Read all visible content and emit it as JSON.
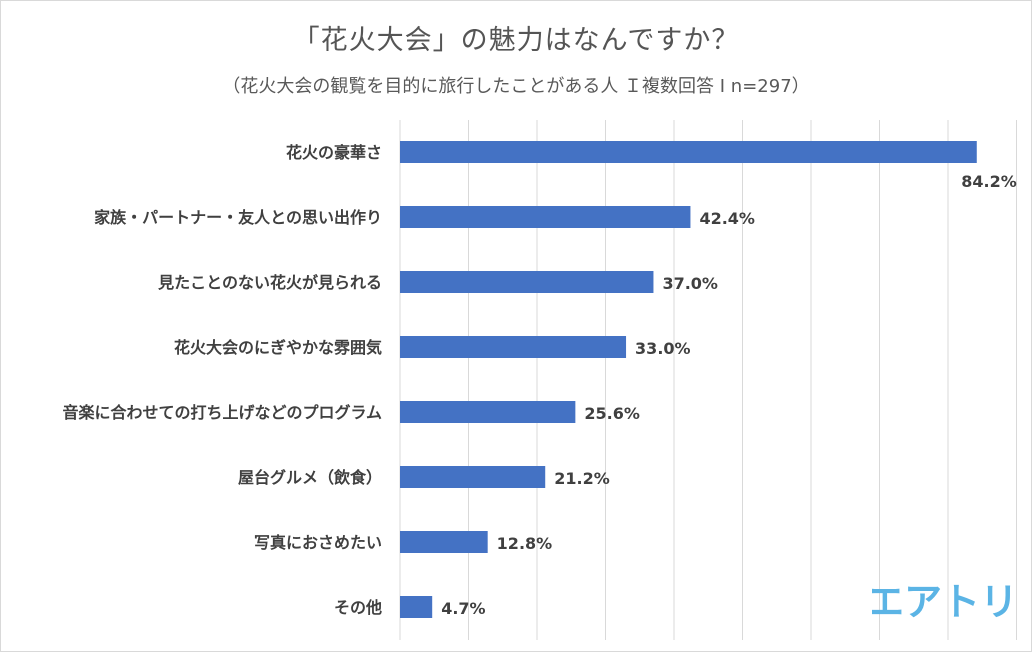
{
  "header": {
    "title": "「花火大会」の魅力はなんですか？",
    "subtitle": "（花火大会の観覧を目的に旅行したことがある人 Ｉ複数回答 I n=297）"
  },
  "logo": {
    "text": "エアトリ",
    "color": "#5bb4e5"
  },
  "colors": {
    "bar": "#4472c4",
    "grid": "#d9d9d9",
    "label": "#404040"
  },
  "chart_data": {
    "type": "bar",
    "orientation": "horizontal",
    "categories": [
      "花火の豪華さ",
      "家族・パートナー・友人との思い出作り",
      "見たことのない花火が見られる",
      "花火大会のにぎやかな雰囲気",
      "音楽に合わせての打ち上げなどのプログラム",
      "屋台グルメ（飲食）",
      "写真におさめたい",
      "その他"
    ],
    "values": [
      84.2,
      42.4,
      37.0,
      33.0,
      25.6,
      21.2,
      12.8,
      4.7
    ],
    "value_labels": [
      "84.2%",
      "42.4%",
      "37.0%",
      "33.0%",
      "25.6%",
      "21.2%",
      "12.8%",
      "4.7%"
    ],
    "xlim": [
      0,
      90
    ],
    "grid_step": 10,
    "grid": true,
    "legend": "none"
  }
}
